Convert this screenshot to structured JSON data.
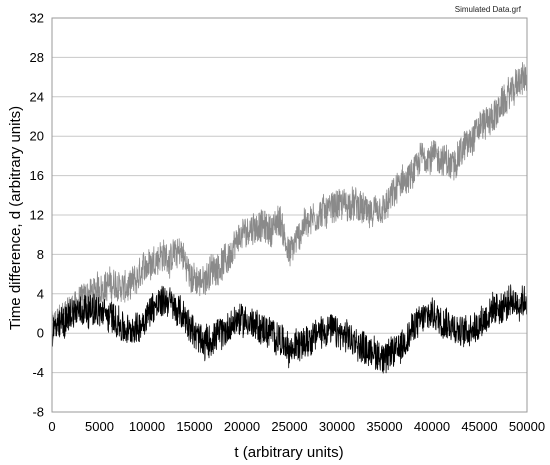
{
  "file_label": "Simulated Data.grf",
  "colors": {
    "background": "#ffffff",
    "grid": "#c8c8c8",
    "frame": "#9a9a9a",
    "series_gray": "#8a8a8a",
    "series_black": "#000000"
  },
  "chart_data": {
    "type": "line",
    "title": "",
    "xlabel": "t (arbitrary units)",
    "ylabel": "Time difference, d (arbitrary units)",
    "xlim": [
      0,
      50000
    ],
    "ylim": [
      -8,
      32
    ],
    "grid": "horizontal",
    "legend": "none",
    "xticks": [
      0,
      5000,
      10000,
      15000,
      20000,
      25000,
      30000,
      35000,
      40000,
      45000,
      50000
    ],
    "yticks": [
      -8,
      -4,
      0,
      4,
      8,
      12,
      16,
      20,
      24,
      28,
      32
    ],
    "noise_amplitude": 1.6,
    "series": [
      {
        "color": "#8a8a8a",
        "x": [
          0,
          2000,
          4000,
          6000,
          8000,
          9000,
          10000,
          11500,
          12500,
          13500,
          14500,
          15500,
          17000,
          18500,
          20000,
          21500,
          23000,
          24000,
          25000,
          26500,
          28000,
          30000,
          32000,
          33500,
          35000,
          36500,
          38000,
          39000,
          40500,
          42000,
          43500,
          45000,
          46500,
          48000,
          49000,
          50000
        ],
        "y": [
          0.5,
          2.5,
          4,
          5,
          4.5,
          5.5,
          7,
          8,
          7.5,
          8.5,
          6,
          5,
          6.5,
          7.5,
          10,
          11,
          10.5,
          11.5,
          8,
          11,
          12,
          13,
          13,
          12,
          12.5,
          15,
          16,
          18,
          18,
          17,
          19,
          21,
          22,
          24,
          25.5,
          26
        ]
      },
      {
        "color": "#000000",
        "x": [
          0,
          1000,
          2000,
          3000,
          4000,
          5000,
          6000,
          7000,
          8000,
          9000,
          10000,
          11000,
          12000,
          13000,
          14000,
          15000,
          16000,
          17000,
          18000,
          19000,
          20000,
          21000,
          22000,
          23000,
          24000,
          25000,
          26000,
          27000,
          28000,
          29000,
          30000,
          31000,
          32000,
          33000,
          34000,
          35000,
          36000,
          37000,
          38000,
          39000,
          40000,
          41000,
          42000,
          43000,
          44000,
          45000,
          46000,
          47000,
          48000,
          49000,
          50000
        ],
        "y": [
          0,
          1,
          2,
          2.5,
          2.5,
          2,
          2,
          1,
          0,
          0.5,
          2,
          3,
          3.5,
          2.5,
          1.5,
          0,
          -1,
          -0.5,
          0,
          1,
          1.5,
          1,
          0.5,
          0,
          -0.5,
          -2,
          -1,
          -0.5,
          0,
          0.5,
          0,
          -0.5,
          -1,
          -1.5,
          -2,
          -2.5,
          -2,
          -1,
          0.5,
          1.5,
          2,
          1.5,
          1,
          0,
          0.5,
          1,
          2,
          2.5,
          3,
          3,
          3.5
        ]
      }
    ]
  }
}
